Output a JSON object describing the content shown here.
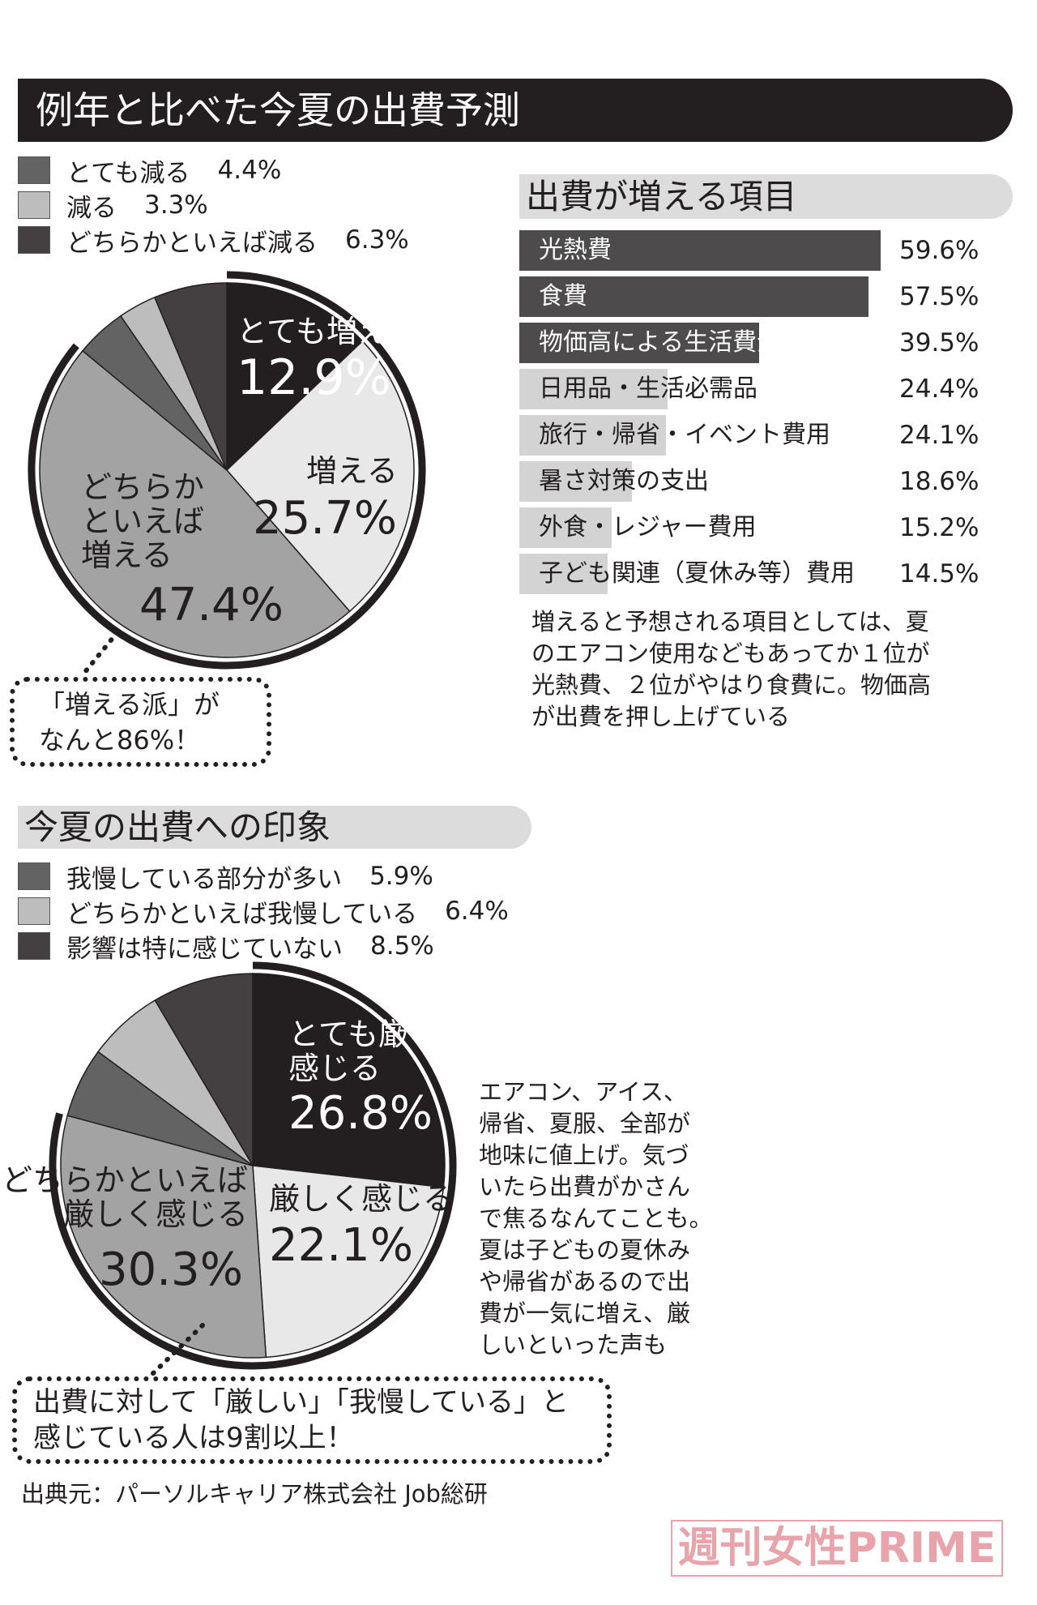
{
  "title": "例年と比べた今夏の出費予測",
  "colors": {
    "black": "#231f20",
    "light": "#e8e8e8",
    "mid": "#a3a3a3",
    "dark_gray": "#636363",
    "pale_gray": "#bdbdbd",
    "charcoal": "#444041",
    "bar_dark": "#4d4b4c",
    "bar_light": "#d3d3d3",
    "header_gray": "#dcdcdc",
    "watermark": "#e9a3ab"
  },
  "chart_data": [
    {
      "type": "pie",
      "title": "例年と比べた今夏の出費予測",
      "slices": [
        {
          "label": "とても増える",
          "value": 12.9,
          "display": "12.9%",
          "color": "#231f20"
        },
        {
          "label": "増える",
          "value": 25.7,
          "display": "25.7%",
          "color": "#e8e8e8"
        },
        {
          "label": "どちらかといえば増える",
          "value": 47.4,
          "display": "47.4%",
          "color": "#a3a3a3"
        },
        {
          "label": "とても減る",
          "value": 4.4,
          "display": "4.4%",
          "color": "#636363"
        },
        {
          "label": "減る",
          "value": 3.3,
          "display": "3.3%",
          "color": "#bdbdbd"
        },
        {
          "label": "どちらかといえば減る",
          "value": 6.3,
          "display": "6.3%",
          "color": "#444041"
        }
      ],
      "highlight_arc_percent": 86,
      "callout": [
        "「増える派」が",
        "なんと86%！"
      ]
    },
    {
      "type": "bar",
      "title": "出費が増える項目",
      "orientation": "horizontal",
      "categories": [
        "光熱費",
        "食費",
        "物価高による生活費全般",
        "日用品・生活必需品",
        "旅行・帰省・イベント費用",
        "暑さ対策の支出",
        "外食・レジャー費用",
        "子ども関連（夏休み等）費用"
      ],
      "values": [
        59.6,
        57.5,
        39.5,
        24.4,
        24.1,
        18.6,
        15.2,
        14.5
      ],
      "labels": [
        "59.6%",
        "57.5%",
        "39.5%",
        "24.4%",
        "24.1%",
        "18.6%",
        "15.2%",
        "14.5%"
      ]
    },
    {
      "type": "pie",
      "title": "今夏の出費への印象",
      "slices": [
        {
          "label": "とても厳しく感じる",
          "value": 26.8,
          "display": "26.8%",
          "color": "#231f20"
        },
        {
          "label": "厳しく感じる",
          "value": 22.1,
          "display": "22.1%",
          "color": "#e8e8e8"
        },
        {
          "label": "どちらかといえば厳しく感じる",
          "value": 30.3,
          "display": "30.3%",
          "color": "#a3a3a3"
        },
        {
          "label": "我慢している部分が多い",
          "value": 5.9,
          "display": "5.9%",
          "color": "#636363"
        },
        {
          "label": "どちらかといえば我慢している",
          "value": 6.4,
          "display": "6.4%",
          "color": "#bdbdbd"
        },
        {
          "label": "影響は特に感じていない",
          "value": 8.5,
          "display": "8.5%",
          "color": "#444041"
        }
      ],
      "highlight_arc_percent": 79.2,
      "callout": [
        "出費に対して「厳しい」「我慢している」と",
        "感じている人は9割以上！"
      ]
    }
  ],
  "pie1_labels": {
    "a1": "とても増える",
    "a2": "12.9%",
    "b1": "増える",
    "b2": "25.7%",
    "c1": "どちらか",
    "c2": "といえば",
    "c3": "増える",
    "c4": "47.4%"
  },
  "pie2_labels": {
    "a1": "とても厳しく",
    "a2": "感じる",
    "a3": "26.8%",
    "b1": "厳しく感じる",
    "b2": "22.1%",
    "c1": "どちらかといえば",
    "c2": "厳しく感じる",
    "c3": "30.3%"
  },
  "para1": [
    "増えると予想される項目としては、夏",
    "のエアコン使用などもあってか１位が",
    "光熱費、２位がやはり食費に。物価高",
    "が出費を押し上げている"
  ],
  "para2": [
    "エアコン、アイス、",
    "帰省、夏服、全部が",
    "地味に値上げ。気づ",
    "いたら出費がかさん",
    "で焦るなんてことも。",
    "夏は子どもの夏休み",
    "や帰省があるので出",
    "費が一気に増え、厳",
    "しいといった声も"
  ],
  "source": "出典元：パーソルキャリア株式会社 Job総研",
  "watermark": "週刊女性PRIME"
}
